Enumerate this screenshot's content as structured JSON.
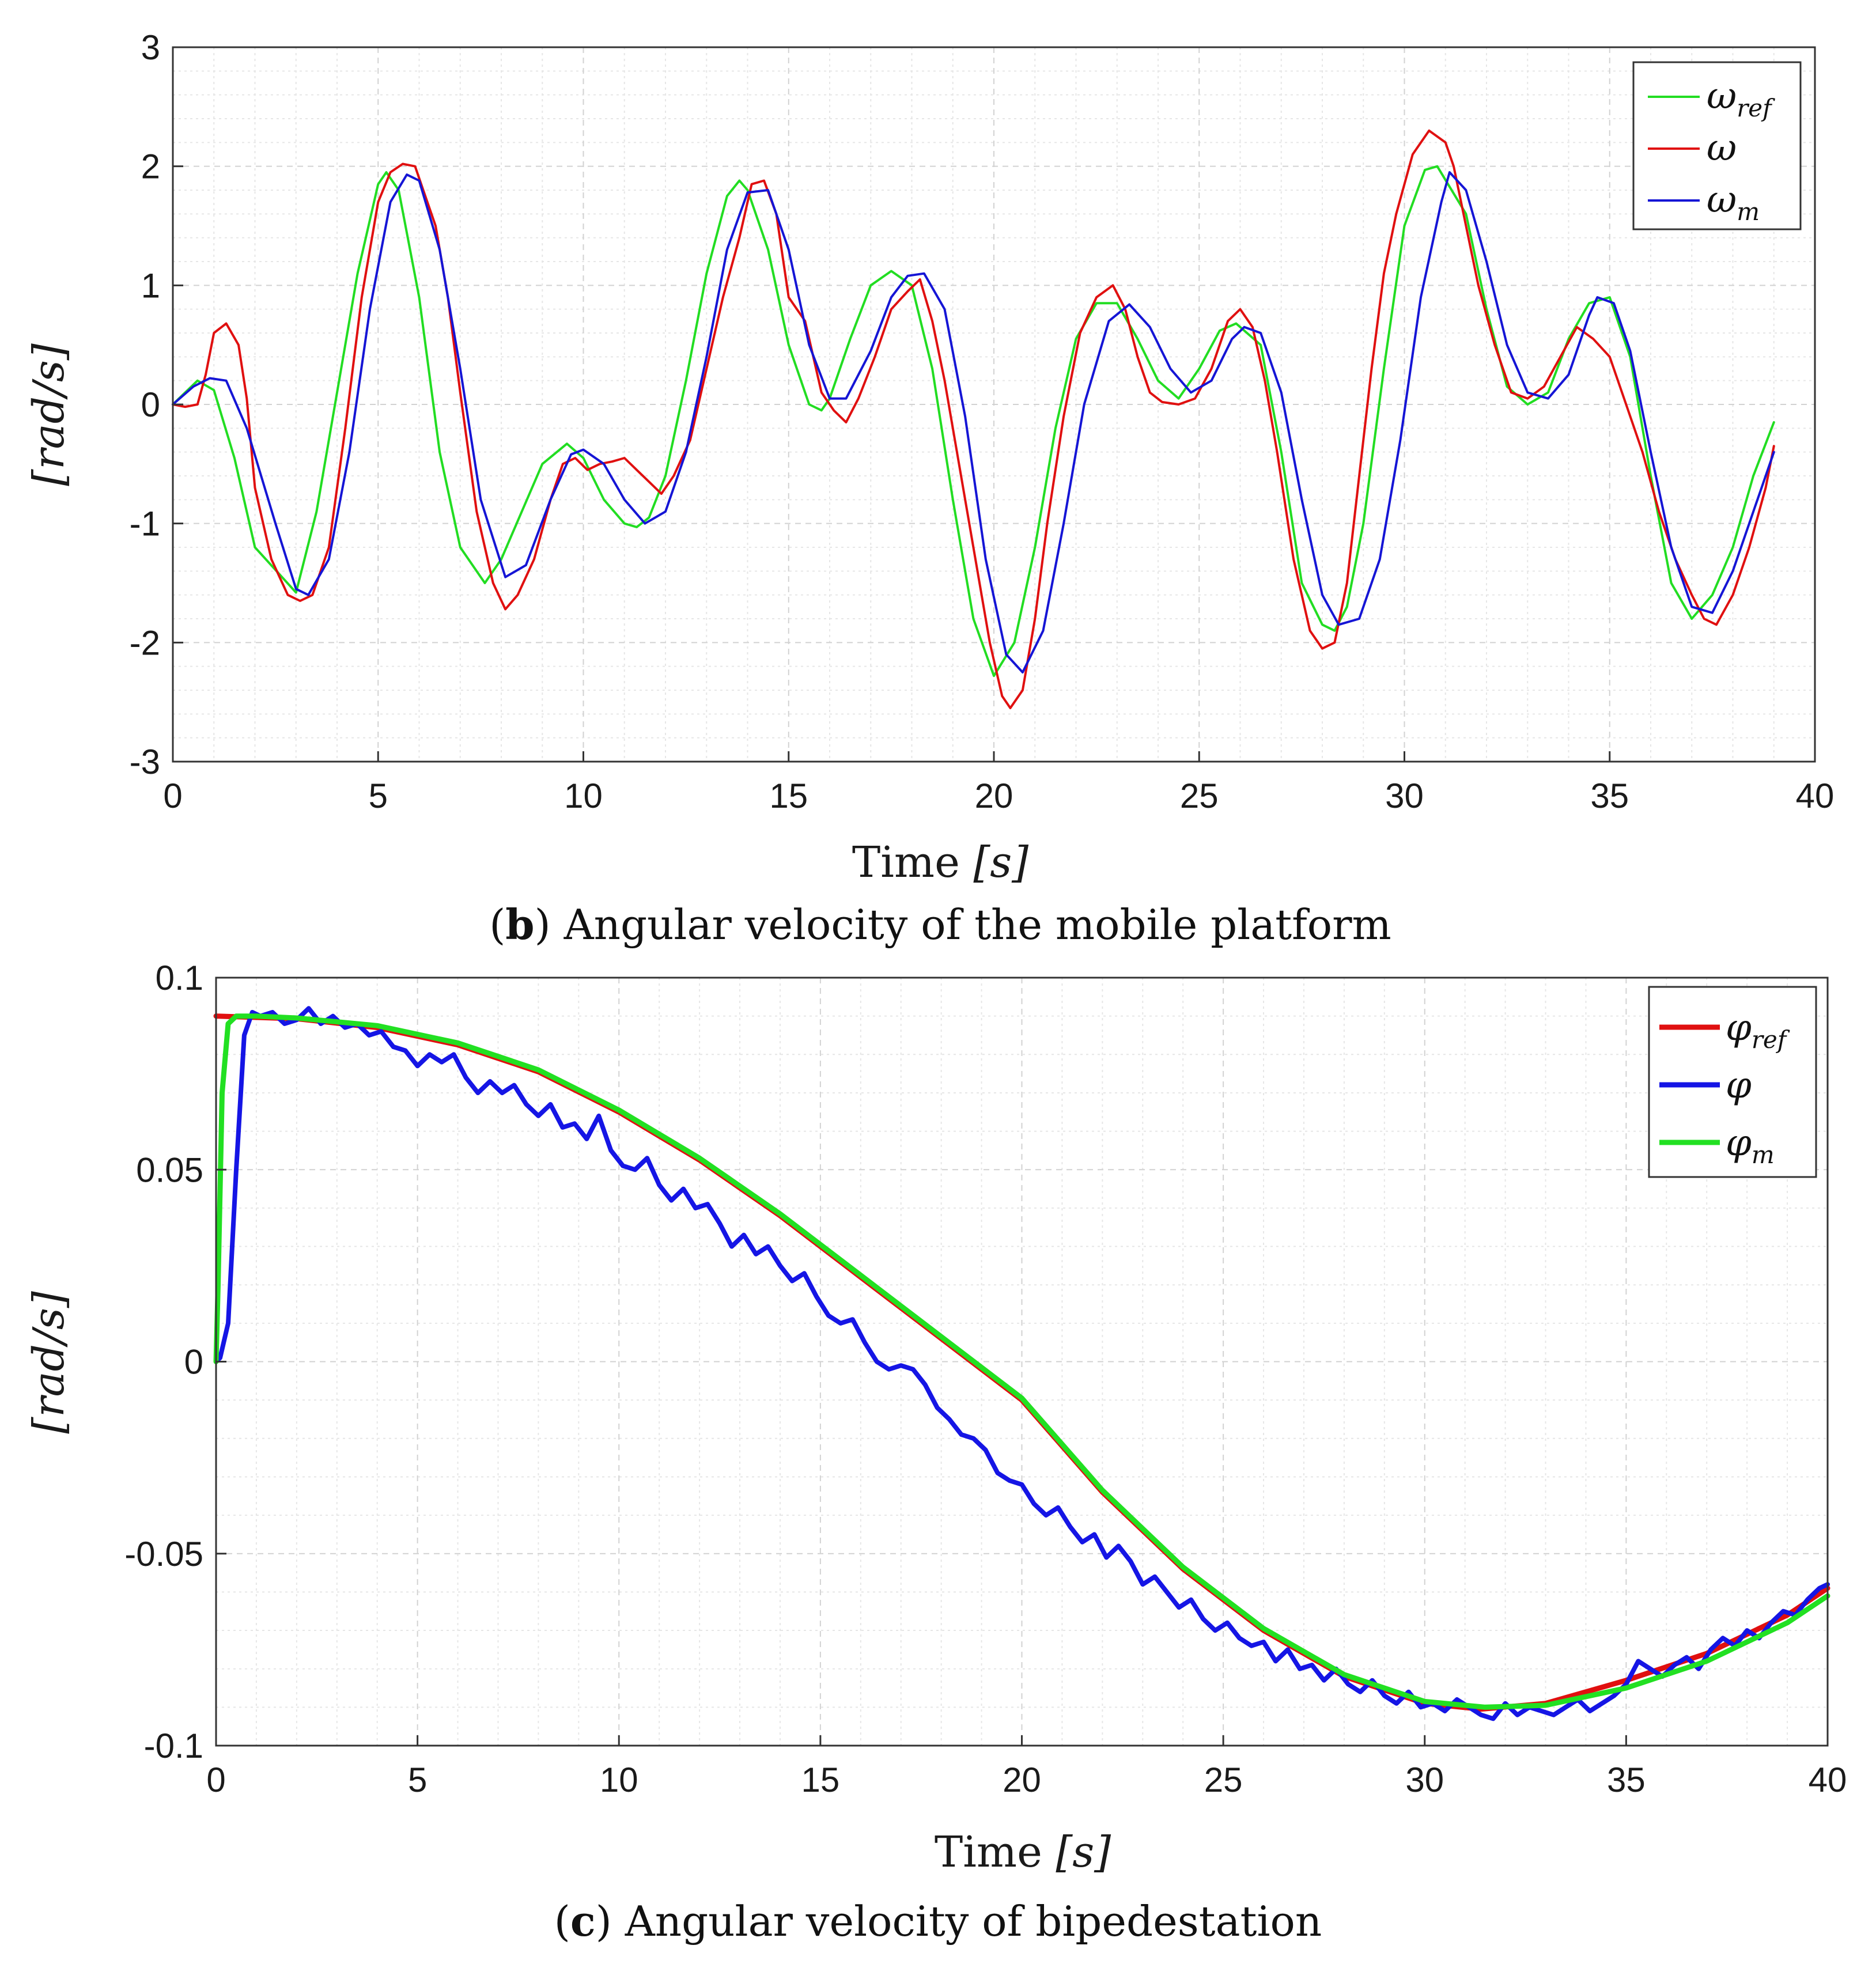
{
  "chart_data": [
    {
      "type": "line",
      "caption_letter": "b",
      "caption_text": " Angular velocity of the mobile platform",
      "xlabel_word": "Time",
      "xlabel_unit": "[s]",
      "ylabel": "[rad/s]",
      "xlim": [
        0,
        40
      ],
      "ylim": [
        -3,
        3
      ],
      "xticks": [
        0,
        5,
        10,
        15,
        20,
        25,
        30,
        35,
        40
      ],
      "yticks": [
        -3,
        -2,
        -1,
        0,
        1,
        2,
        3
      ],
      "xtick_labels": [
        "0",
        "5",
        "10",
        "15",
        "20",
        "25",
        "30",
        "35",
        "40"
      ],
      "ytick_labels": [
        "-3",
        "-2",
        "-1",
        "0",
        "1",
        "2",
        "3"
      ],
      "grid": true,
      "legend_position": "top-right",
      "series": [
        {
          "name": "ω_ref",
          "legend_main": "ω",
          "legend_sub": "ref",
          "color": "#22dd22",
          "x": [
            0,
            0.6,
            1,
            1.5,
            2,
            3,
            3.5,
            4,
            4.5,
            5,
            5.2,
            5.5,
            6,
            6.5,
            7,
            7.6,
            8,
            8.5,
            9,
            9.6,
            10,
            10.5,
            11,
            11.3,
            11.6,
            12,
            12.5,
            13,
            13.5,
            13.8,
            14,
            14.5,
            15,
            15.5,
            15.8,
            16,
            16.5,
            17,
            17.5,
            18,
            18.5,
            19,
            19.5,
            20,
            20.5,
            21,
            21.5,
            22,
            22.5,
            23,
            23.5,
            24,
            24.5,
            25,
            25.5,
            25.9,
            26.5,
            27,
            27.5,
            28,
            28.3,
            28.6,
            29,
            29.5,
            30,
            30.5,
            30.8,
            31.5,
            32,
            32.5,
            33,
            33.5,
            34,
            34.5,
            35,
            35.5,
            36,
            36.5,
            37,
            37.5,
            38,
            38.5,
            39
          ],
          "y": [
            0,
            0.2,
            0.12,
            -0.45,
            -1.2,
            -1.58,
            -0.9,
            0.1,
            1.1,
            1.85,
            1.95,
            1.8,
            0.9,
            -0.4,
            -1.2,
            -1.5,
            -1.3,
            -0.9,
            -0.5,
            -0.33,
            -0.45,
            -0.8,
            -1.0,
            -1.03,
            -0.95,
            -0.6,
            0.2,
            1.1,
            1.75,
            1.88,
            1.8,
            1.3,
            0.5,
            0.0,
            -0.05,
            0.05,
            0.55,
            1.0,
            1.12,
            1.0,
            0.3,
            -0.8,
            -1.8,
            -2.28,
            -2.0,
            -1.2,
            -0.2,
            0.55,
            0.85,
            0.85,
            0.55,
            0.2,
            0.05,
            0.3,
            0.62,
            0.68,
            0.5,
            -0.4,
            -1.5,
            -1.85,
            -1.9,
            -1.7,
            -1.0,
            0.3,
            1.5,
            1.97,
            2.0,
            1.6,
            0.8,
            0.15,
            0.0,
            0.1,
            0.55,
            0.85,
            0.9,
            0.4,
            -0.6,
            -1.5,
            -1.8,
            -1.6,
            -1.2,
            -0.6,
            -0.15
          ]
        },
        {
          "name": "ω",
          "legend_main": "ω",
          "legend_sub": "",
          "color": "#e01010",
          "x": [
            0,
            0.3,
            0.6,
            0.8,
            1,
            1.3,
            1.6,
            1.8,
            2,
            2.4,
            2.8,
            3.1,
            3.4,
            3.8,
            4.2,
            4.6,
            5,
            5.3,
            5.6,
            5.9,
            6.1,
            6.4,
            6.7,
            7,
            7.4,
            7.8,
            8.1,
            8.4,
            8.8,
            9.2,
            9.5,
            9.8,
            10.1,
            10.4,
            10.7,
            11,
            11.3,
            11.6,
            11.9,
            12.2,
            12.6,
            13,
            13.4,
            13.8,
            14.1,
            14.4,
            14.7,
            15,
            15.4,
            15.8,
            16.1,
            16.4,
            16.7,
            17.1,
            17.5,
            17.9,
            18.2,
            18.5,
            18.8,
            19.1,
            19.5,
            19.9,
            20.2,
            20.4,
            20.7,
            21,
            21.3,
            21.7,
            22.1,
            22.5,
            22.9,
            23.2,
            23.5,
            23.8,
            24.1,
            24.5,
            24.9,
            25.3,
            25.7,
            26,
            26.3,
            26.6,
            26.9,
            27.3,
            27.7,
            28,
            28.3,
            28.6,
            28.9,
            29.2,
            29.5,
            29.8,
            30.2,
            30.6,
            31,
            31.2,
            31.5,
            31.8,
            32.2,
            32.6,
            33,
            33.4,
            33.8,
            34.2,
            34.6,
            35,
            35.4,
            35.8,
            36.2,
            36.6,
            37,
            37.3,
            37.6,
            38,
            38.4,
            38.8,
            39
          ],
          "y": [
            0,
            -0.02,
            0.0,
            0.25,
            0.6,
            0.68,
            0.5,
            0.05,
            -0.7,
            -1.3,
            -1.6,
            -1.65,
            -1.6,
            -1.2,
            -0.2,
            0.9,
            1.7,
            1.95,
            2.02,
            2.0,
            1.8,
            1.5,
            0.9,
            0.1,
            -0.9,
            -1.5,
            -1.72,
            -1.6,
            -1.3,
            -0.8,
            -0.5,
            -0.45,
            -0.55,
            -0.5,
            -0.48,
            -0.45,
            -0.55,
            -0.65,
            -0.75,
            -0.6,
            -0.3,
            0.3,
            0.9,
            1.4,
            1.85,
            1.88,
            1.6,
            0.9,
            0.7,
            0.1,
            -0.05,
            -0.15,
            0.05,
            0.4,
            0.8,
            0.95,
            1.05,
            0.7,
            0.2,
            -0.4,
            -1.2,
            -2.0,
            -2.45,
            -2.55,
            -2.4,
            -1.8,
            -1.0,
            -0.1,
            0.6,
            0.9,
            1.0,
            0.8,
            0.4,
            0.1,
            0.02,
            0.0,
            0.05,
            0.3,
            0.7,
            0.8,
            0.65,
            0.2,
            -0.4,
            -1.3,
            -1.9,
            -2.05,
            -2.0,
            -1.5,
            -0.6,
            0.3,
            1.1,
            1.6,
            2.1,
            2.3,
            2.2,
            2.0,
            1.5,
            1.0,
            0.5,
            0.1,
            0.05,
            0.15,
            0.4,
            0.65,
            0.55,
            0.4,
            0.0,
            -0.4,
            -0.9,
            -1.3,
            -1.6,
            -1.8,
            -1.85,
            -1.6,
            -1.2,
            -0.7,
            -0.35
          ]
        },
        {
          "name": "ω_m",
          "legend_main": "ω",
          "legend_sub": "m",
          "color": "#1515d5",
          "x": [
            0,
            0.5,
            0.9,
            1.3,
            1.8,
            2.5,
            3,
            3.3,
            3.8,
            4.3,
            4.8,
            5.3,
            5.7,
            6,
            6.5,
            7,
            7.5,
            8.1,
            8.6,
            9.2,
            9.7,
            10,
            10.5,
            11,
            11.5,
            12,
            12.5,
            13,
            13.5,
            14,
            14.5,
            15,
            15.5,
            16,
            16.4,
            17,
            17.5,
            17.9,
            18.3,
            18.8,
            19.3,
            19.8,
            20.3,
            20.7,
            21.2,
            21.7,
            22.2,
            22.8,
            23.3,
            23.8,
            24.3,
            24.8,
            25.3,
            25.8,
            26.1,
            26.5,
            27,
            27.5,
            28,
            28.4,
            28.9,
            29.4,
            29.9,
            30.4,
            30.9,
            31.1,
            31.5,
            32,
            32.5,
            33,
            33.5,
            34,
            34.5,
            34.7,
            35.1,
            35.5,
            36,
            36.5,
            37,
            37.5,
            38,
            38.5,
            39
          ],
          "y": [
            0,
            0.15,
            0.22,
            0.2,
            -0.2,
            -1.0,
            -1.55,
            -1.6,
            -1.3,
            -0.4,
            0.8,
            1.7,
            1.93,
            1.88,
            1.3,
            0.3,
            -0.8,
            -1.45,
            -1.35,
            -0.8,
            -0.42,
            -0.38,
            -0.5,
            -0.8,
            -1.0,
            -0.9,
            -0.4,
            0.4,
            1.3,
            1.78,
            1.8,
            1.3,
            0.5,
            0.05,
            0.05,
            0.45,
            0.9,
            1.08,
            1.1,
            0.8,
            -0.1,
            -1.3,
            -2.1,
            -2.25,
            -1.9,
            -1.0,
            0.0,
            0.7,
            0.84,
            0.65,
            0.3,
            0.1,
            0.2,
            0.55,
            0.65,
            0.6,
            0.1,
            -0.8,
            -1.6,
            -1.85,
            -1.8,
            -1.3,
            -0.3,
            0.9,
            1.7,
            1.95,
            1.8,
            1.2,
            0.5,
            0.1,
            0.05,
            0.25,
            0.75,
            0.9,
            0.85,
            0.45,
            -0.4,
            -1.2,
            -1.7,
            -1.75,
            -1.4,
            -0.9,
            -0.4
          ]
        }
      ]
    },
    {
      "type": "line",
      "caption_letter": "c",
      "caption_text": " Angular velocity of bipedestation",
      "xlabel_word": "Time",
      "xlabel_unit": "[s]",
      "ylabel": "[rad/s]",
      "xlim": [
        0,
        40
      ],
      "ylim": [
        -0.1,
        0.1
      ],
      "xticks": [
        0,
        5,
        10,
        15,
        20,
        25,
        30,
        35,
        40
      ],
      "yticks": [
        -0.1,
        -0.05,
        0,
        0.05,
        0.1
      ],
      "xtick_labels": [
        "0",
        "5",
        "10",
        "15",
        "20",
        "25",
        "30",
        "35",
        "40"
      ],
      "ytick_labels": [
        "-0.1",
        "-0.05",
        "0",
        "0.05",
        "0.1"
      ],
      "grid": true,
      "legend_position": "top-right",
      "series": [
        {
          "name": "φ_ref",
          "legend_main": "φ",
          "legend_sub": "ref",
          "color": "#e01010",
          "x": [
            0,
            2,
            4,
            6,
            8,
            10,
            12,
            14,
            16,
            18,
            20,
            22,
            24,
            26,
            28,
            30,
            31.4,
            33,
            35,
            37,
            39,
            40
          ],
          "y": [
            0.09,
            0.0893,
            0.087,
            0.0825,
            0.0755,
            0.065,
            0.0525,
            0.038,
            0.022,
            0.006,
            -0.01,
            -0.034,
            -0.054,
            -0.07,
            -0.082,
            -0.089,
            -0.0905,
            -0.089,
            -0.083,
            -0.076,
            -0.066,
            -0.059
          ]
        },
        {
          "name": "φ",
          "legend_main": "φ",
          "legend_sub": "",
          "color": "#1515e5",
          "x": [
            0,
            0.1,
            0.3,
            0.5,
            0.7,
            0.9,
            1.1,
            1.4,
            1.7,
            2.0,
            2.3,
            2.6,
            2.9,
            3.2,
            3.5,
            3.8,
            4.1,
            4.4,
            4.7,
            5.0,
            5.3,
            5.6,
            5.9,
            6.2,
            6.5,
            6.8,
            7.1,
            7.4,
            7.7,
            8.0,
            8.3,
            8.6,
            8.9,
            9.2,
            9.5,
            9.8,
            10.1,
            10.4,
            10.7,
            11.0,
            11.3,
            11.6,
            11.9,
            12.2,
            12.5,
            12.8,
            13.1,
            13.4,
            13.7,
            14.0,
            14.3,
            14.6,
            14.9,
            15.2,
            15.5,
            15.8,
            16.1,
            16.4,
            16.7,
            17.0,
            17.3,
            17.6,
            17.9,
            18.2,
            18.5,
            18.8,
            19.1,
            19.4,
            19.7,
            20.0,
            20.3,
            20.6,
            20.9,
            21.2,
            21.5,
            21.8,
            22.1,
            22.4,
            22.7,
            23.0,
            23.3,
            23.6,
            23.9,
            24.2,
            24.5,
            24.8,
            25.1,
            25.4,
            25.7,
            26.0,
            26.3,
            26.6,
            26.9,
            27.2,
            27.5,
            27.8,
            28.1,
            28.4,
            28.7,
            29.0,
            29.3,
            29.6,
            29.9,
            30.2,
            30.5,
            30.8,
            31.1,
            31.4,
            31.7,
            32.0,
            32.3,
            32.6,
            32.9,
            33.2,
            33.5,
            33.8,
            34.1,
            34.4,
            34.7,
            35.0,
            35.3,
            35.6,
            35.9,
            36.2,
            36.5,
            36.8,
            37.1,
            37.4,
            37.7,
            38.0,
            38.3,
            38.6,
            38.9,
            39.2,
            39.5,
            39.8,
            40
          ],
          "y": [
            0,
            0.001,
            0.01,
            0.05,
            0.085,
            0.091,
            0.09,
            0.091,
            0.088,
            0.089,
            0.092,
            0.088,
            0.09,
            0.087,
            0.088,
            0.085,
            0.086,
            0.082,
            0.081,
            0.077,
            0.08,
            0.078,
            0.08,
            0.074,
            0.07,
            0.073,
            0.07,
            0.072,
            0.067,
            0.064,
            0.067,
            0.061,
            0.062,
            0.058,
            0.064,
            0.055,
            0.051,
            0.05,
            0.053,
            0.046,
            0.042,
            0.045,
            0.04,
            0.041,
            0.036,
            0.03,
            0.033,
            0.028,
            0.03,
            0.025,
            0.021,
            0.023,
            0.017,
            0.012,
            0.01,
            0.011,
            0.005,
            0.0,
            -0.002,
            -0.001,
            -0.002,
            -0.006,
            -0.012,
            -0.015,
            -0.019,
            -0.02,
            -0.023,
            -0.029,
            -0.031,
            -0.032,
            -0.037,
            -0.04,
            -0.038,
            -0.043,
            -0.047,
            -0.045,
            -0.051,
            -0.048,
            -0.052,
            -0.058,
            -0.056,
            -0.06,
            -0.064,
            -0.062,
            -0.067,
            -0.07,
            -0.068,
            -0.072,
            -0.074,
            -0.073,
            -0.078,
            -0.075,
            -0.08,
            -0.079,
            -0.083,
            -0.08,
            -0.084,
            -0.086,
            -0.083,
            -0.087,
            -0.089,
            -0.086,
            -0.09,
            -0.089,
            -0.091,
            -0.088,
            -0.09,
            -0.092,
            -0.093,
            -0.089,
            -0.092,
            -0.09,
            -0.091,
            -0.092,
            -0.09,
            -0.088,
            -0.091,
            -0.089,
            -0.087,
            -0.084,
            -0.078,
            -0.08,
            -0.082,
            -0.079,
            -0.077,
            -0.08,
            -0.075,
            -0.072,
            -0.074,
            -0.07,
            -0.072,
            -0.068,
            -0.065,
            -0.066,
            -0.062,
            -0.059,
            -0.058
          ]
        },
        {
          "name": "φ_m",
          "legend_main": "φ",
          "legend_sub": "m",
          "color": "#22e022",
          "x": [
            0,
            0.05,
            0.15,
            0.3,
            0.5,
            1,
            2,
            4,
            6,
            8,
            10,
            12,
            14,
            16,
            18,
            20,
            22,
            24,
            26,
            28,
            30,
            31.5,
            33,
            35,
            37,
            39,
            40
          ],
          "y": [
            0,
            0.02,
            0.07,
            0.088,
            0.09,
            0.09,
            0.0895,
            0.0875,
            0.083,
            0.076,
            0.0655,
            0.053,
            0.0385,
            0.0225,
            0.0065,
            -0.0095,
            -0.0335,
            -0.0535,
            -0.0695,
            -0.0815,
            -0.0885,
            -0.09,
            -0.0895,
            -0.085,
            -0.078,
            -0.068,
            -0.061
          ]
        }
      ]
    }
  ]
}
